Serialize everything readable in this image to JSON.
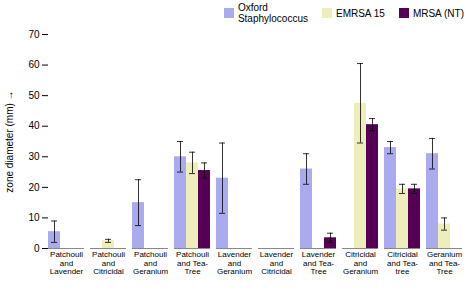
{
  "chart_data": {
    "type": "bar",
    "categories": [
      "Patchouli\nand\nLavender",
      "Patchouli\nand\nCitricidal",
      "Patchouli\nand\nGeranium",
      "Patchouli\nand Tea-\nTree",
      "Lavender\nand\nGeranium",
      "Lavender\nand\nCitricidal",
      "Lavender\nand Tea-\nTree",
      "Citricidal\nand\nGeranium",
      "Citricidal\nand Tea-\ntree",
      "Geranium\nand Tea-\nTree"
    ],
    "series": [
      {
        "name": "Oxford\nStaphylococcus",
        "color": "#aaaaee",
        "values": [
          5.5,
          0,
          15,
          30,
          23,
          0,
          26,
          0,
          33,
          31
        ],
        "errors": [
          3.5,
          0,
          7.5,
          5,
          11.5,
          0,
          5,
          0,
          2,
          5
        ]
      },
      {
        "name": "EMRSA 15",
        "color": "#eeeebb",
        "values": [
          0,
          2.5,
          0,
          28,
          0,
          0,
          0,
          47.5,
          19.5,
          8
        ],
        "errors": [
          0,
          0.5,
          0,
          3.5,
          0,
          0,
          0,
          13,
          1.5,
          2
        ]
      },
      {
        "name": "MRSA (NT)",
        "color": "#550055",
        "values": [
          0,
          0,
          0,
          25.5,
          0,
          0,
          3.5,
          40.5,
          19.5,
          0
        ],
        "errors": [
          0,
          0,
          0,
          2.5,
          0,
          0,
          1.5,
          2,
          1.5,
          0
        ]
      }
    ],
    "ylabel": "zone diameter (mm)",
    "ylim": [
      0,
      70
    ],
    "yticks": [
      0,
      10,
      20,
      30,
      40,
      50,
      60,
      70
    ],
    "legend": "upper right"
  }
}
